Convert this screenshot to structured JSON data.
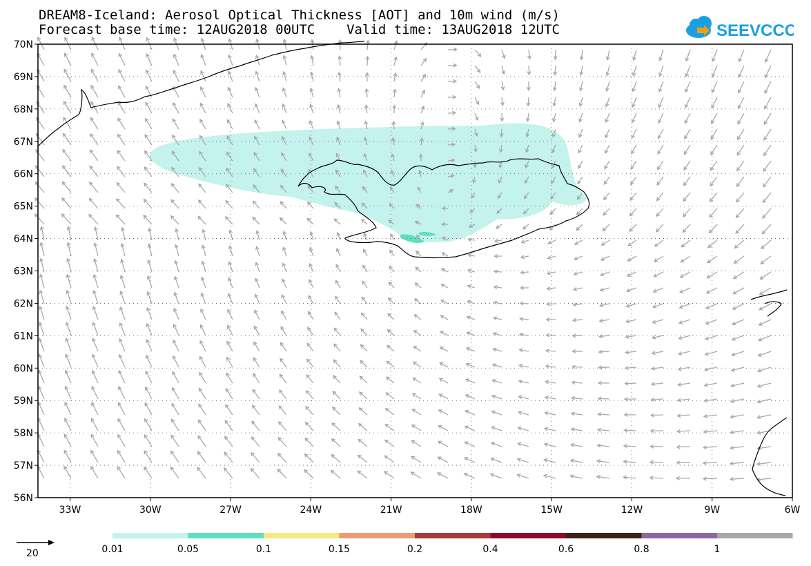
{
  "header": {
    "title_line1": "DREAM8-Iceland: Aerosol Optical Thickness [AOT] and 10m wind (m/s)",
    "title_line2": "Forecast base time: 12AUG2018 00UTC    Valid time: 13AUG2018 12UTC"
  },
  "logo": {
    "text": "SEEVCCC",
    "icon": "cloud-icon",
    "color": "#1aa0e0",
    "accent": "#f39c12"
  },
  "map": {
    "lat_labels": [
      "70N",
      "69N",
      "68N",
      "67N",
      "66N",
      "65N",
      "64N",
      "63N",
      "62N",
      "61N",
      "60N",
      "59N",
      "58N",
      "57N",
      "56N"
    ],
    "lon_labels": [
      "33W",
      "30W",
      "27W",
      "24W",
      "21W",
      "18W",
      "15W",
      "12W",
      "9W",
      "6W"
    ],
    "lat_range": [
      56,
      70
    ],
    "lon_range": [
      -34.2,
      -6
    ],
    "aot_color_low": "#c4f2ec",
    "aot_color_mid": "#5ee0bc",
    "wind_color": "#a8a8a8",
    "coast_color": "#000000"
  },
  "wind_legend": {
    "value": "20"
  },
  "colorbar": {
    "colors": [
      "#c4f2ec",
      "#5ee0bc",
      "#f7e982",
      "#ee9b72",
      "#a83c3c",
      "#8b0a2e",
      "#3c2418",
      "#8a68a0",
      "#a8a8a8"
    ],
    "labels": [
      "0.01",
      "0.05",
      "0.1",
      "0.15",
      "0.2",
      "0.4",
      "0.6",
      "0.8",
      "1"
    ]
  }
}
